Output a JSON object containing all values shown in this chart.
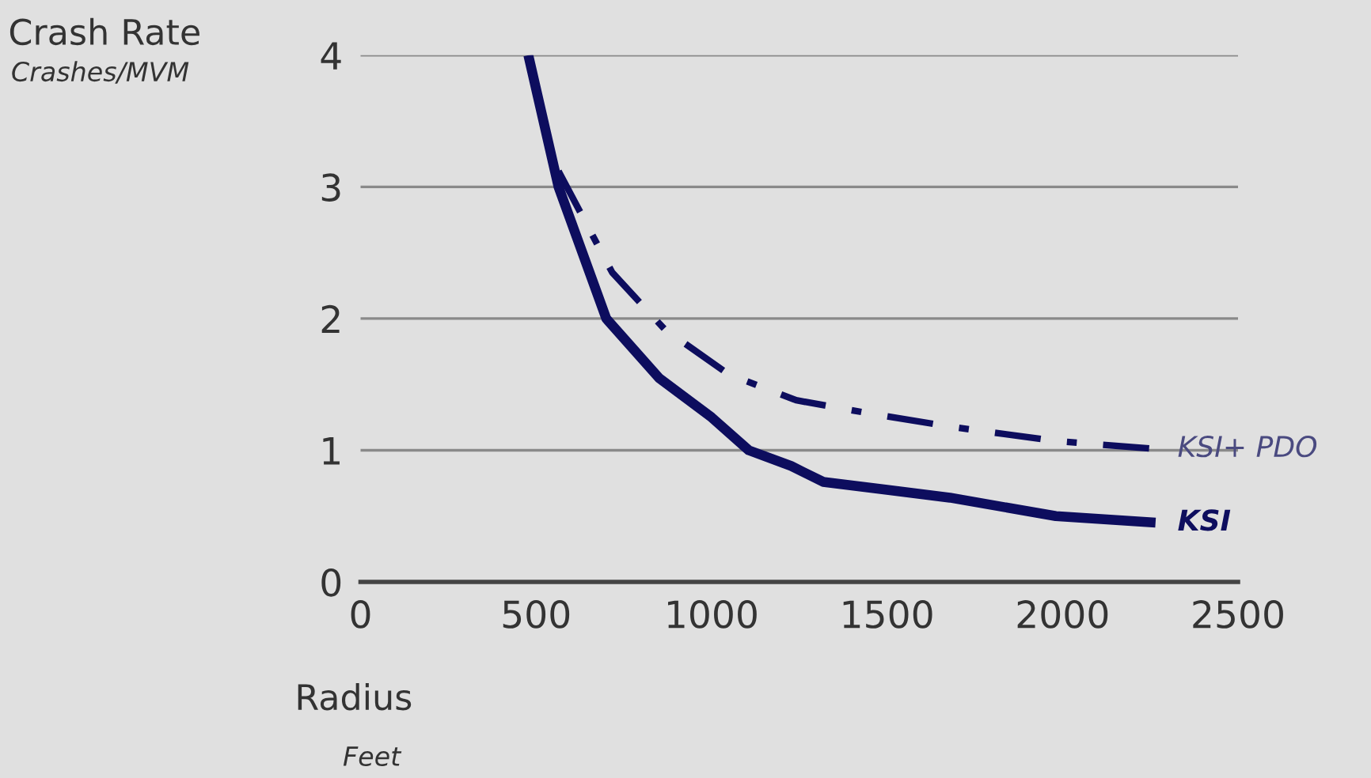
{
  "chart_data": {
    "type": "line",
    "xlabel": "Radius",
    "ylabel": "Crash Rate",
    "annotations": [
      "Crashes/MVM",
      "Feet"
    ],
    "series": [
      {
        "name": "KSI+ PDO",
        "color": "#0d0d5e",
        "line_style": "dashdot",
        "x": [
          564,
          717,
          866,
          1047,
          1241,
          1450,
          1679,
          1981,
          2265
        ],
        "values": [
          3.12,
          2.35,
          1.92,
          1.58,
          1.38,
          1.28,
          1.18,
          1.07,
          1.01
        ]
      },
      {
        "name": "KSI",
        "color": "#0d0d5e",
        "line_style": "solid",
        "x": [
          478,
          564,
          700,
          850,
          1000,
          1106,
          1227,
          1318,
          1500,
          1679,
          1981,
          2265
        ],
        "values": [
          4,
          3,
          2,
          1.55,
          1.25,
          1,
          0.88,
          0.76,
          0.7,
          0.64,
          0.5,
          0.45
        ]
      }
    ],
    "xlim": [
      0,
      2500
    ],
    "xticks": [
      0,
      500,
      1000,
      1500,
      2000,
      2500
    ],
    "ylim": [
      0,
      4
    ],
    "yticks": [
      0,
      1,
      2,
      3,
      4
    ],
    "grid": "y",
    "legend": false,
    "marker": "none"
  }
}
